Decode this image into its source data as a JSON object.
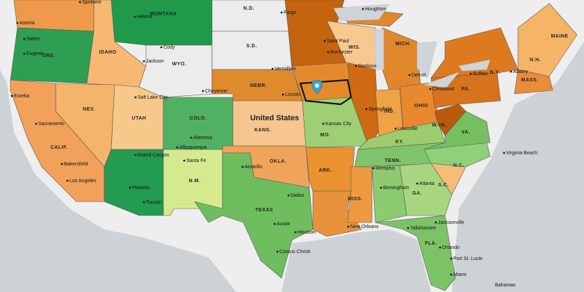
{
  "map": {
    "country_label": "United States",
    "state_labels": [
      "ORE.",
      "IDAHO",
      "MONTANA",
      "WYO.",
      "N.D.",
      "S.D.",
      "NEBR.",
      "KANS.",
      "OKLA.",
      "COLO.",
      "UTAH",
      "NEV.",
      "CALIF.",
      "N.M.",
      "TEXAS",
      "MO.",
      "ARK.",
      "MISS.",
      "TENN.",
      "KY.",
      "IND.",
      "OHIO",
      "MICH.",
      "WIS.",
      "PA.",
      "N.Y.",
      "W.VA.",
      "VA.",
      "N.C.",
      "S.C.",
      "GA.",
      "FLA.",
      "MAINE",
      "N.H.",
      "MASS."
    ],
    "city_labels": [
      "Spokane",
      "Astoria",
      "Salem",
      "Eugene",
      "Helena",
      "Cody",
      "Jackson",
      "Cheyenne",
      "Salt Lake City",
      "Eureka",
      "Sacramento",
      "Bakersfield",
      "Los Angeles",
      "Phoenix",
      "Tucson",
      "Grand Canyon",
      "Santa Fe",
      "Albuquerque",
      "Alamosa",
      "Amarillo",
      "Dallas",
      "Austin",
      "Houston",
      "Corpus Christi",
      "New Orleans",
      "Memphis",
      "Birmingham",
      "Atlanta",
      "Tallahassee",
      "Jacksonville",
      "Orlando",
      "Port St. Lucie",
      "Miami",
      "Kansas City",
      "Lincoln",
      "Springfield",
      "Saint Paul",
      "Rochester",
      "Madison",
      "Detroit",
      "Cleveland",
      "Louisville",
      "Houghton",
      "Fargo",
      "Vermillion",
      "Buffalo",
      "Albany",
      "Virginia Beach",
      "Bahamas"
    ]
  }
}
